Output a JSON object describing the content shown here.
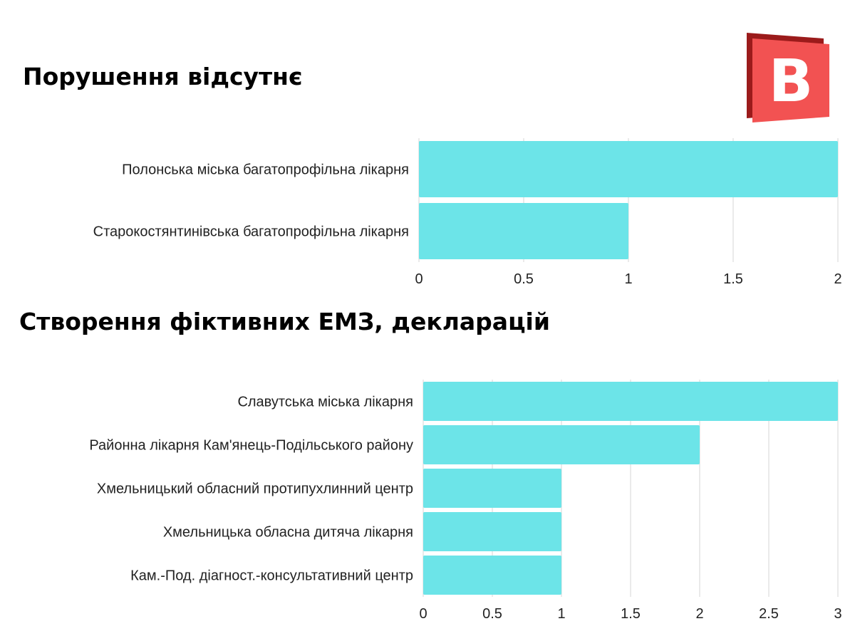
{
  "logo": {
    "letter": "B",
    "colors": {
      "front": "#f25252",
      "back": "#9b1b1b",
      "letter": "#ffffff"
    }
  },
  "chart_data": [
    {
      "type": "bar",
      "orientation": "horizontal",
      "title": "Порушення відсутнє",
      "categories": [
        "Полонська міська багатопрофільна лікарня",
        "Старокостянтинівська багатопрофільна лікарня"
      ],
      "values": [
        2,
        1
      ],
      "xlim": [
        0,
        2
      ],
      "ticks": [
        "0",
        "0.5",
        "1",
        "1.5",
        "2"
      ],
      "grid": true,
      "color": "#6ce4e8"
    },
    {
      "type": "bar",
      "orientation": "horizontal",
      "title": "Створення фіктивних ЕМЗ, декларацій",
      "categories": [
        "Славутська міська лікарня",
        "Районна лікарня Кам'янець-Подільського району",
        "Хмельницький обласний протипухлинний центр",
        "Хмельницька обласна дитяча лікарня",
        "Кам.-Под. діагност.-консультативний центр"
      ],
      "values": [
        3,
        2,
        1,
        1,
        1
      ],
      "xlim": [
        0,
        3
      ],
      "ticks": [
        "0",
        "0.5",
        "1",
        "1.5",
        "2",
        "2.5",
        "3"
      ],
      "grid": true,
      "color": "#6ce4e8"
    }
  ]
}
